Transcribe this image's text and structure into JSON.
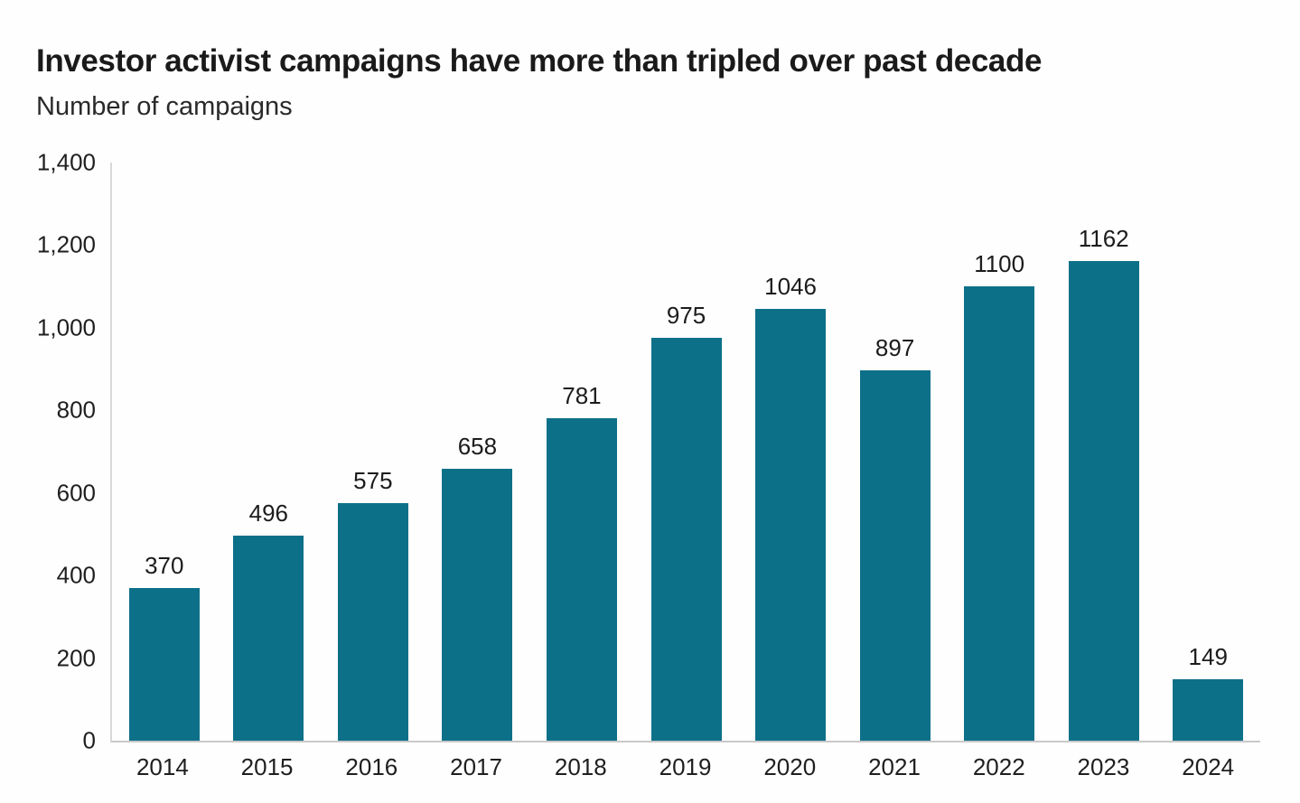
{
  "page": {
    "background": "#ffffff"
  },
  "header": {
    "title": "Investor activist campaigns have more than tripled over past decade",
    "subtitle": "Number of campaigns"
  },
  "chart_data": {
    "type": "bar",
    "title": "Investor activist campaigns have more than tripled over past decade",
    "ylabel": "Number of campaigns",
    "xlabel": "",
    "categories": [
      "2014",
      "2015",
      "2016",
      "2017",
      "2018",
      "2019",
      "2020",
      "2021",
      "2022",
      "2023",
      "2024"
    ],
    "values": [
      370,
      496,
      575,
      658,
      781,
      975,
      1046,
      897,
      1100,
      1162,
      149
    ],
    "data_labels": [
      "370",
      "496",
      "575",
      "658",
      "781",
      "975",
      "1046",
      "897",
      "1100",
      "1162",
      "149"
    ],
    "ylim": [
      0,
      1400
    ],
    "yticks": [
      0,
      200,
      400,
      600,
      800,
      1000,
      1200,
      1400
    ],
    "ytick_labels": [
      "0",
      "200",
      "400",
      "600",
      "800",
      "1,000",
      "1,200",
      "1,400"
    ],
    "grid": false,
    "legend": "none",
    "data_labels_shown": true,
    "bar_color": "#0d7089",
    "axis_color": "#c9c9c9",
    "text_color": "#1f1f1f"
  }
}
